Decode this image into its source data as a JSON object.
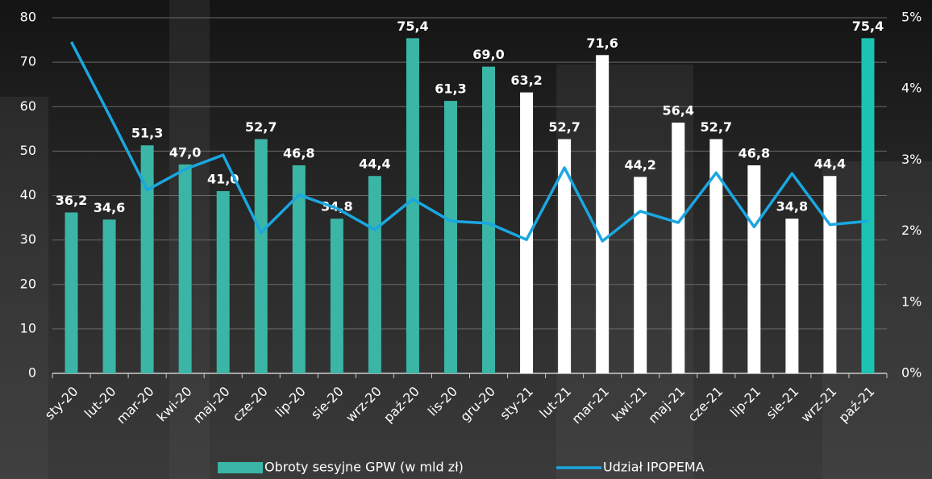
{
  "chart_data": {
    "type": "bar_line",
    "categories": [
      "sty-20",
      "lut-20",
      "mar-20",
      "kwi-20",
      "maj-20",
      "cze-20",
      "lip-20",
      "sie-20",
      "wrz-20",
      "paź-20",
      "lis-20",
      "gru-20",
      "sty-21",
      "lut-21",
      "mar-21",
      "kwi-21",
      "maj-21",
      "cze-21",
      "lip-21",
      "sie-21",
      "wrz-21",
      "paź-21"
    ],
    "series": [
      {
        "name": "Obroty sesyjne GPW (w mld zł)",
        "type": "bar",
        "color": "#3ab5a6",
        "colors": [
          "#3ab5a6",
          "#3ab5a6",
          "#3ab5a6",
          "#3ab5a6",
          "#3ab5a6",
          "#3ab5a6",
          "#3ab5a6",
          "#3ab5a6",
          "#3ab5a6",
          "#3ab5a6",
          "#3ab5a6",
          "#3ab5a6",
          "#ffffff",
          "#ffffff",
          "#ffffff",
          "#ffffff",
          "#ffffff",
          "#ffffff",
          "#ffffff",
          "#ffffff",
          "#ffffff",
          "#1cc2b2"
        ],
        "values": [
          36.2,
          34.6,
          51.3,
          47.0,
          41.0,
          52.7,
          46.8,
          34.8,
          44.4,
          75.4,
          61.3,
          69.0,
          63.2,
          52.7,
          71.6,
          44.2,
          56.4,
          52.7,
          46.8,
          34.8,
          44.4,
          75.4
        ],
        "value_labels": [
          "36,2",
          "34,6",
          "51,3",
          "47,0",
          "41,0",
          "52,7",
          "46,8",
          "34,8",
          "44,4",
          "75,4",
          "61,3",
          "69,0",
          "63,2",
          "52,7",
          "71,6",
          "44,2",
          "56,4",
          "52,7",
          "46,8",
          "34,8",
          "44,4",
          "75,4"
        ]
      },
      {
        "name": "Udział IPOPEMA",
        "type": "line",
        "axis": "y2",
        "color": "#1aa7e0",
        "values": [
          4.66,
          3.63,
          2.58,
          2.87,
          3.07,
          1.98,
          2.51,
          2.32,
          2.02,
          2.45,
          2.14,
          2.11,
          1.88,
          2.89,
          1.86,
          2.28,
          2.12,
          2.82,
          2.06,
          2.81,
          2.09,
          2.14
        ]
      }
    ],
    "ylim": [
      0,
      80
    ],
    "yticks": [
      0,
      10,
      20,
      30,
      40,
      50,
      60,
      70,
      80
    ],
    "y2lim": [
      0,
      5
    ],
    "y2ticks": [
      {
        "value": 0,
        "label": "0%"
      },
      {
        "value": 1,
        "label": "1%"
      },
      {
        "value": 2,
        "label": "2%"
      },
      {
        "value": 3,
        "label": "3%"
      },
      {
        "value": 4,
        "label": "4%"
      },
      {
        "value": 5,
        "label": "5%"
      }
    ],
    "grid": true,
    "legend": "bottom"
  }
}
